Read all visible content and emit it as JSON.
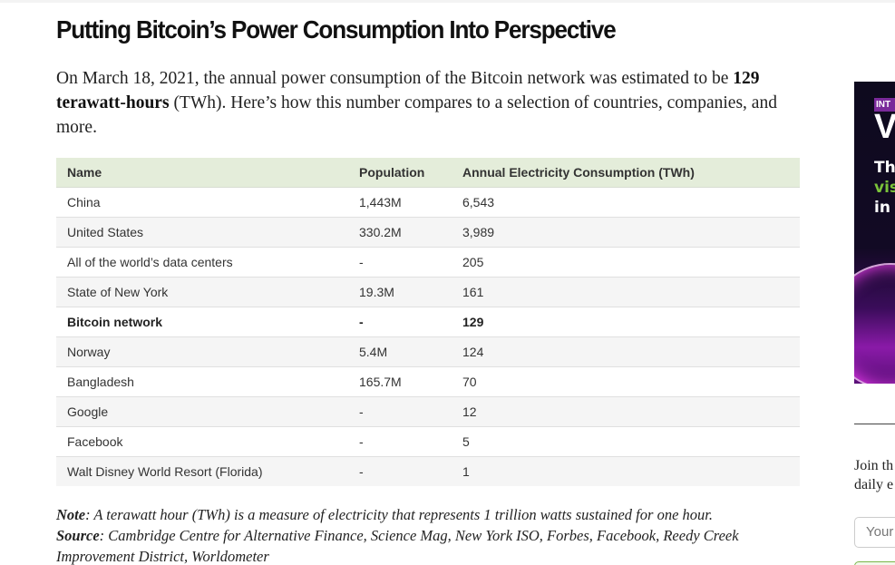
{
  "article": {
    "title": "Putting Bitcoin’s Power Consumption Into Perspective",
    "intro_before": "On March 18, 2021, the annual power consumption of the Bitcoin network was estimated to be ",
    "intro_bold": "129 terawatt-hours",
    "intro_after": " (TWh). Here’s how this number compares to a selection of countries, companies, and more."
  },
  "table": {
    "headers": [
      "Name",
      "Population",
      "Annual Electricity Consumption (TWh)"
    ],
    "rows": [
      {
        "name": "China",
        "population": "1,443M",
        "consumption": "6,543"
      },
      {
        "name": "United States",
        "population": "330.2M",
        "consumption": "3,989"
      },
      {
        "name": "All of the world’s data centers",
        "population": "-",
        "consumption": "205"
      },
      {
        "name": "State of New York",
        "population": "19.3M",
        "consumption": "161"
      },
      {
        "name": "Bitcoin network",
        "population": "-",
        "consumption": "129",
        "highlight": true
      },
      {
        "name": "Norway",
        "population": "5.4M",
        "consumption": "124"
      },
      {
        "name": "Bangladesh",
        "population": "165.7M",
        "consumption": "70"
      },
      {
        "name": "Google",
        "population": "-",
        "consumption": "12"
      },
      {
        "name": "Facebook",
        "population": "-",
        "consumption": "5"
      },
      {
        "name": "Walt Disney World Resort (Florida)",
        "population": "-",
        "consumption": "1"
      }
    ],
    "header_bg": "#e4edda",
    "stripe_bg": "#f5f5f5"
  },
  "notes": {
    "note_label": "Note",
    "note_text": ": A terawatt hour (TWh) is a measure of electricity that represents 1 trillion watts sustained for one hour.",
    "source_label": "Source",
    "source_text": ": Cambridge Centre for Alternative Finance, Science Mag, New York ISO, Forbes, Facebook, Reedy Creek Improvement District, Worldometer"
  },
  "sidebar": {
    "ad": {
      "badge": "INT",
      "big": "V",
      "line1": "Th",
      "line2": "vis",
      "line3": "in",
      "accent_color": "#7ac23a"
    },
    "newsletter_text_line1": "Join th",
    "newsletter_text_line2": "daily e",
    "email_placeholder": "Your"
  }
}
